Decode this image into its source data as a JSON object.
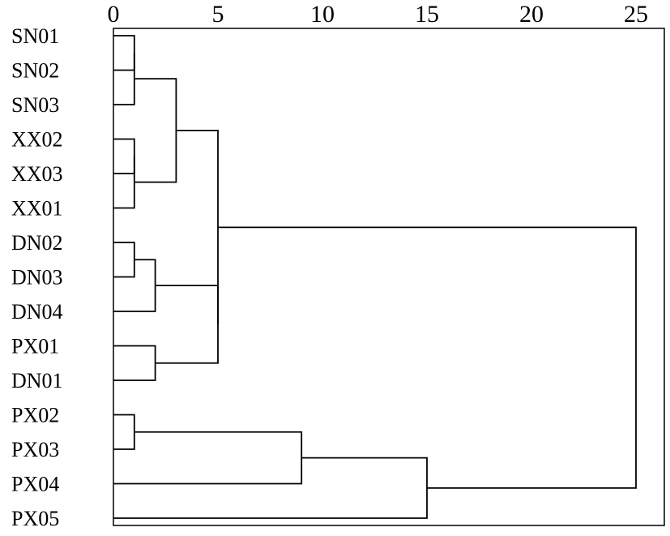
{
  "chart_data": {
    "type": "dendrogram",
    "orientation": "horizontal",
    "title": "",
    "xlabel": "",
    "ylabel": "",
    "xlim": [
      0,
      25.5
    ],
    "x_ticks": [
      0,
      5,
      10,
      15,
      20,
      25
    ],
    "x_tick_labels": [
      "0",
      "5",
      "10",
      "15",
      "20",
      "25"
    ],
    "leaves": [
      "SN01",
      "SN02",
      "SN03",
      "XX02",
      "XX03",
      "XX01",
      "DN02",
      "DN03",
      "DN04",
      "PX01",
      "DN01",
      "PX02",
      "PX03",
      "PX04",
      "PX05"
    ],
    "merges": [
      {
        "id": "c1",
        "a": "SN01",
        "b": "SN02",
        "height": 1
      },
      {
        "id": "c2",
        "a": "c1",
        "b": "SN03",
        "height": 1
      },
      {
        "id": "c3",
        "a": "XX02",
        "b": "XX03",
        "height": 1
      },
      {
        "id": "c4",
        "a": "c3",
        "b": "XX01",
        "height": 1
      },
      {
        "id": "c5",
        "a": "c2",
        "b": "c4",
        "height": 3
      },
      {
        "id": "c6",
        "a": "DN02",
        "b": "DN03",
        "height": 1
      },
      {
        "id": "c7",
        "a": "c6",
        "b": "DN04",
        "height": 2
      },
      {
        "id": "c8",
        "a": "PX01",
        "b": "DN01",
        "height": 2
      },
      {
        "id": "c9",
        "a": "c7",
        "b": "c8",
        "height": 5
      },
      {
        "id": "c10",
        "a": "c5",
        "b": "c9",
        "height": 5
      },
      {
        "id": "c11",
        "a": "PX02",
        "b": "PX03",
        "height": 1
      },
      {
        "id": "c12",
        "a": "c11",
        "b": "PX04",
        "height": 9
      },
      {
        "id": "c13",
        "a": "c12",
        "b": "PX05",
        "height": 15
      },
      {
        "id": "c14",
        "a": "c10",
        "b": "c13",
        "height": 25
      }
    ]
  }
}
